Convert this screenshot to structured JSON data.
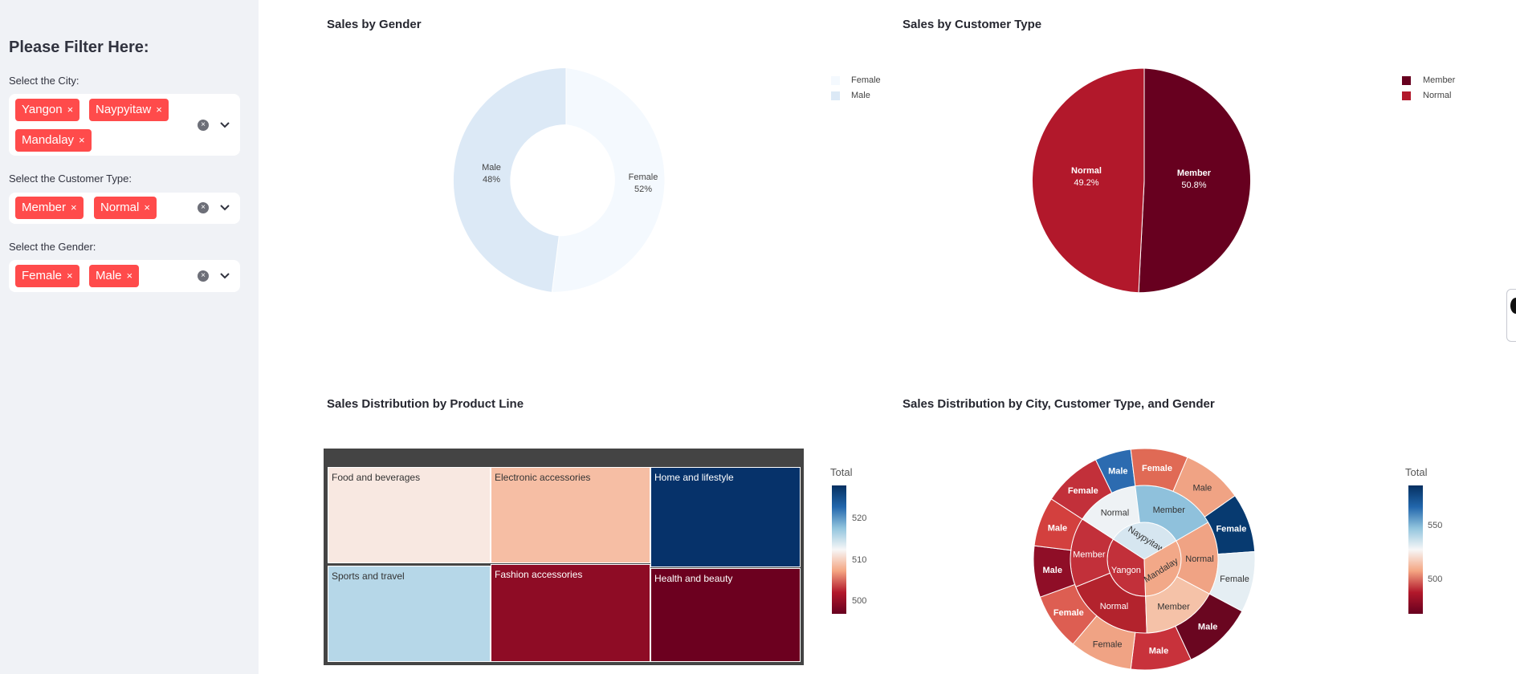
{
  "sidebar": {
    "title": "Please Filter Here:",
    "filters": [
      {
        "label": "Select the City:",
        "tags": [
          "Yangon",
          "Naypyitaw",
          "Mandalay"
        ]
      },
      {
        "label": "Select the Customer Type:",
        "tags": [
          "Member",
          "Normal"
        ]
      },
      {
        "label": "Select the Gender:",
        "tags": [
          "Female",
          "Male"
        ]
      }
    ],
    "tag_remove_glyph": "×",
    "clear_glyph": "×",
    "accent_color": "#ff4b4b"
  },
  "charts": {
    "gender": {
      "title": "Sales by Gender",
      "legend": [
        "Female",
        "Male"
      ],
      "slice_labels": [
        {
          "name": "Female",
          "pct": "52%"
        },
        {
          "name": "Male",
          "pct": "48%"
        }
      ]
    },
    "customer": {
      "title": "Sales by Customer Type",
      "legend": [
        "Member",
        "Normal"
      ],
      "slice_labels": [
        {
          "name": "Member",
          "pct": "50.8%"
        },
        {
          "name": "Normal",
          "pct": "49.2%"
        }
      ]
    },
    "product": {
      "title": "Sales Distribution by Product Line",
      "tiles": [
        "Food and beverages",
        "Electronic accessories",
        "Home and lifestyle",
        "Sports and travel",
        "Fashion accessories",
        "Health and beauty"
      ],
      "colorbar": {
        "title": "Total",
        "ticks": [
          "520",
          "510",
          "500"
        ]
      }
    },
    "sunburst": {
      "title": "Sales Distribution by City, Customer Type, and Gender",
      "inner": [
        "Yangon",
        "Naypyitaw",
        "Mandalay"
      ],
      "middle": [
        "Member",
        "Normal",
        "Member",
        "Normal",
        "Member",
        "Normal"
      ],
      "outer": [
        "Female",
        "Male",
        "Female",
        "Male",
        "Female",
        "Male",
        "Female",
        "Male",
        "Female",
        "Male",
        "Female",
        "Male"
      ],
      "colorbar": {
        "title": "Total",
        "ticks": [
          "550",
          "500"
        ]
      }
    }
  },
  "chart_data": [
    {
      "type": "pie",
      "title": "Sales by Gender",
      "hole": true,
      "categories": [
        "Female",
        "Male"
      ],
      "values": [
        52,
        48
      ],
      "colors": [
        "#f4f9fe",
        "#dce9f6"
      ]
    },
    {
      "type": "pie",
      "title": "Sales by Customer Type",
      "categories": [
        "Member",
        "Normal"
      ],
      "values": [
        50.8,
        49.2
      ],
      "colors": [
        "#67001f",
        "#b2182b"
      ]
    },
    {
      "type": "treemap",
      "title": "Sales Distribution by Product Line",
      "categories": [
        "Food and beverages",
        "Electronic accessories",
        "Home and lifestyle",
        "Sports and travel",
        "Fashion accessories",
        "Health and beauty"
      ],
      "values": [
        509,
        504,
        528,
        511,
        498,
        494
      ],
      "colors": [
        "#f8e8e1",
        "#f6bea4",
        "#06326a",
        "#b6d7e8",
        "#8e0c25",
        "#6c001f"
      ],
      "colorbar": {
        "title": "Total",
        "ticks": [
          520,
          510,
          500
        ]
      }
    },
    {
      "type": "sunburst",
      "title": "Sales Distribution by City, Customer Type, and Gender",
      "colorbar": {
        "title": "Total",
        "ticks": [
          550,
          500
        ]
      }
    }
  ]
}
